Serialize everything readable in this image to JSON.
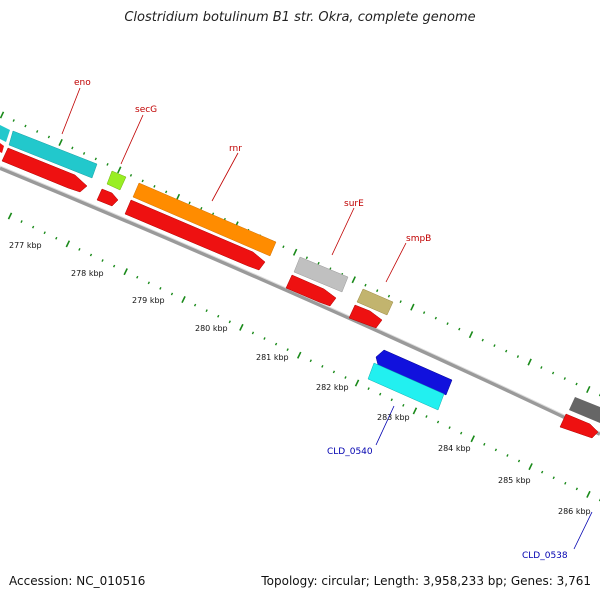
{
  "title": "Clostridium botulinum B1 str. Okra, complete genome",
  "footer": {
    "accession": "Accession: NC_010516",
    "summary": "Topology: circular; Length: 3,958,233 bp; Genes: 3,761"
  },
  "tick_labels": [
    "277 kbp",
    "278 kbp",
    "279 kbp",
    "280 kbp",
    "281 kbp",
    "282 kbp",
    "283 kbp",
    "284 kbp",
    "285 kbp",
    "286 kbp"
  ],
  "gene_labels": {
    "eno": "eno",
    "secG": "secG",
    "rnr": "rnr",
    "surE": "surE",
    "smpB": "smpB",
    "cld0540": "CLD_0540",
    "cld0538": "CLD_0538"
  },
  "colors": {
    "cds": "#ee1111",
    "eno": "#22c8cc",
    "secG": "#99ee22",
    "rnr": "#ff8c00",
    "surE": "#c0c0c0",
    "smpB": "#c2b46e",
    "cld0540_blue": "#1111dd",
    "cld0540_cyan": "#22f0f0",
    "right_gray": "#666666",
    "backbone": "#888888",
    "tick_green": "#1a8a1a",
    "label_red": "#c00000",
    "label_blue": "#0000b0"
  }
}
